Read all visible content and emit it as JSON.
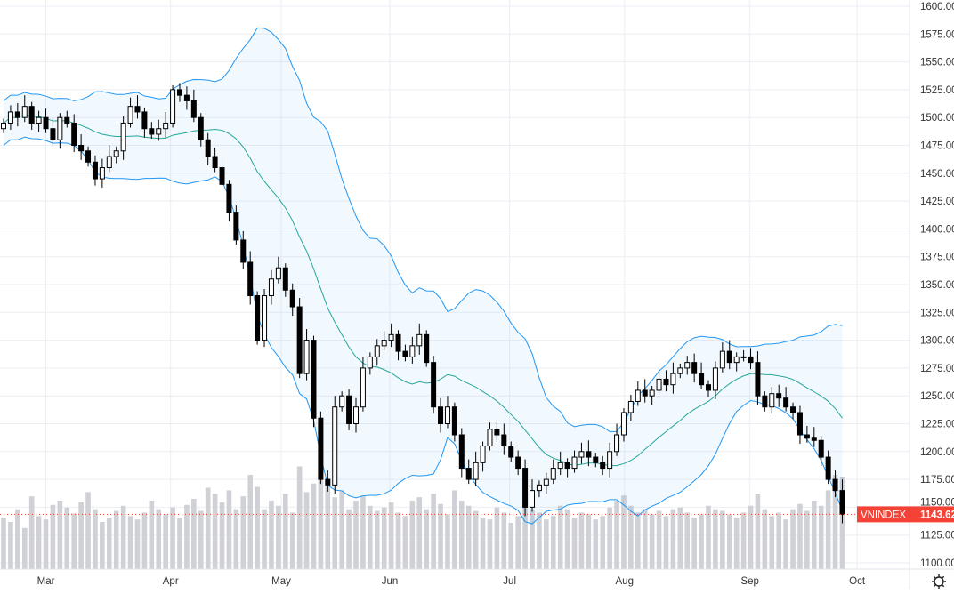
{
  "chart_data": {
    "type": "candlestick",
    "symbol": "VNINDEX",
    "last_value": "1143.62",
    "indicator": "Bollinger Bands",
    "bb_period": 17,
    "bb_mult": 2,
    "ylim": [
      1100,
      1600
    ],
    "y_ticks": [
      "1100.00",
      "1125.00",
      "1150.00",
      "1175.00",
      "1200.00",
      "1225.00",
      "1250.00",
      "1275.00",
      "1300.00",
      "1325.00",
      "1350.00",
      "1375.00",
      "1400.00",
      "1425.00",
      "1450.00",
      "1475.00",
      "1500.00",
      "1525.00",
      "1550.00",
      "1575.00",
      "1600.00"
    ],
    "month_ticks": [
      {
        "label": "Mar",
        "index": 6
      },
      {
        "label": "Apr",
        "index": 23.7
      },
      {
        "label": "May",
        "index": 39.4
      },
      {
        "label": "Jun",
        "index": 54.8
      },
      {
        "label": "Jul",
        "index": 71.8
      },
      {
        "label": "Aug",
        "index": 88.1
      },
      {
        "label": "Sep",
        "index": 105.9
      },
      {
        "label": "Oct",
        "index": 121.1
      }
    ],
    "start_open": 1490,
    "closes": [
      1495,
      1505,
      1500,
      1510,
      1495,
      1500,
      1490,
      1480,
      1500,
      1495,
      1475,
      1470,
      1460,
      1445,
      1455,
      1465,
      1470,
      1495,
      1510,
      1505,
      1490,
      1485,
      1490,
      1495,
      1525,
      1520,
      1515,
      1500,
      1480,
      1465,
      1455,
      1440,
      1415,
      1390,
      1370,
      1340,
      1300,
      1340,
      1355,
      1365,
      1345,
      1330,
      1270,
      1300,
      1230,
      1175,
      1170,
      1240,
      1250,
      1225,
      1240,
      1275,
      1285,
      1295,
      1300,
      1305,
      1290,
      1285,
      1295,
      1305,
      1280,
      1240,
      1225,
      1240,
      1215,
      1185,
      1175,
      1190,
      1205,
      1220,
      1215,
      1205,
      1195,
      1185,
      1150,
      1165,
      1170,
      1175,
      1185,
      1190,
      1185,
      1195,
      1200,
      1195,
      1190,
      1185,
      1200,
      1215,
      1235,
      1245,
      1255,
      1250,
      1255,
      1265,
      1260,
      1270,
      1275,
      1280,
      1270,
      1260,
      1255,
      1275,
      1290,
      1280,
      1285,
      1285,
      1280,
      1250,
      1240,
      1252,
      1248,
      1240,
      1235,
      1215,
      1212,
      1210,
      1195,
      1175,
      1165,
      1143.62
    ],
    "volumes": [
      60,
      55,
      70,
      48,
      85,
      62,
      58,
      75,
      80,
      72,
      65,
      78,
      90,
      70,
      55,
      60,
      68,
      74,
      62,
      58,
      66,
      80,
      70,
      64,
      72,
      60,
      75,
      82,
      68,
      95,
      88,
      78,
      92,
      70,
      85,
      110,
      96,
      70,
      80,
      74,
      88,
      66,
      120,
      90,
      100,
      135,
      98,
      84,
      92,
      70,
      80,
      86,
      74,
      68,
      72,
      78,
      66,
      62,
      80,
      84,
      70,
      88,
      76,
      64,
      92,
      80,
      74,
      68,
      60,
      58,
      72,
      66,
      54,
      62,
      96,
      70,
      66,
      58,
      62,
      74,
      70,
      60,
      66,
      64,
      58,
      62,
      72,
      80,
      86,
      74,
      66,
      70,
      64,
      68,
      62,
      70,
      72,
      66,
      60,
      64,
      74,
      70,
      68,
      64,
      60,
      66,
      74,
      88,
      70,
      62,
      66,
      58,
      70,
      76,
      68,
      80,
      74,
      92,
      110,
      108
    ]
  }
}
